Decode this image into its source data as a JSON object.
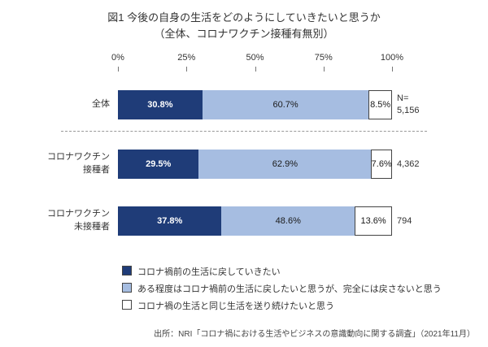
{
  "title": {
    "line1": "図1 今後の自身の生活をどのようにしていきたいと思うか",
    "line2": "（全体、コロナワクチン接種有無別）"
  },
  "axis": {
    "ticks": [
      "0%",
      "25%",
      "50%",
      "75%",
      "100%"
    ]
  },
  "colors": {
    "dark_blue": "#1f3c78",
    "light_blue": "#a6bde1",
    "white": "#ffffff"
  },
  "chart_data": {
    "type": "bar",
    "orientation": "horizontal",
    "stacked": true,
    "xlim": [
      0,
      100
    ],
    "grid": false,
    "legend_position": "bottom-left",
    "categories": [
      "全体",
      "コロナワクチン接種者",
      "コロナワクチン未接種者"
    ],
    "categories_lines": [
      [
        "全体"
      ],
      [
        "コロナワクチン",
        "接種者"
      ],
      [
        "コロナワクチン",
        "未接種者"
      ]
    ],
    "series": [
      {
        "name": "コロナ禍前の生活に戻していきたい",
        "color": "#1f3c78",
        "values": [
          30.8,
          29.5,
          37.8
        ],
        "labels": [
          "30.8%",
          "29.5%",
          "37.8%"
        ]
      },
      {
        "name": "ある程度はコロナ禍前の生活に戻したいと思うが、完全には戻さないと思う",
        "color": "#a6bde1",
        "values": [
          60.7,
          62.9,
          48.6
        ],
        "labels": [
          "60.7%",
          "62.9%",
          "48.6%"
        ]
      },
      {
        "name": "コロナ禍の生活と同じ生活を送り続けたいと思う",
        "color": "#ffffff",
        "values": [
          8.5,
          7.6,
          13.6
        ],
        "labels": [
          "8.5%",
          "7.6%",
          "13.6%"
        ]
      }
    ],
    "n_prefix": "N=",
    "n_values": [
      "5,156",
      "4,362",
      "794"
    ]
  },
  "source": "出所：NRI「コロナ禍における生活やビジネスの意識動向に関する調査」（2021年11月）"
}
